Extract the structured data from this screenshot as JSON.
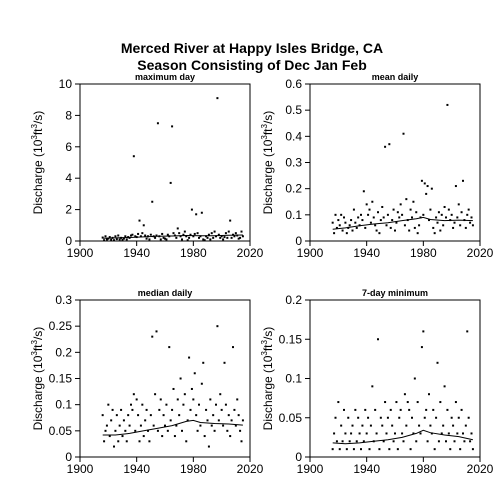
{
  "figure": {
    "title_line1": "Merced River at Happy Isles Bridge, CA",
    "title_line2": "Season Consisting of Dec Jan Feb"
  },
  "chart_data": [
    {
      "type": "scatter",
      "title": "maximum day",
      "ylabel": "Discharge (10^3 ft^3/s)",
      "ylabel_parts": [
        "Discharge (10",
        "3",
        "ft",
        "3",
        "/s)"
      ],
      "xlabel": "",
      "xlim": [
        1900,
        2020
      ],
      "ylim": [
        0,
        10
      ],
      "xticks": [
        1900,
        1940,
        1980,
        2020
      ],
      "yticks": [
        0,
        2,
        4,
        6,
        8,
        10
      ],
      "grid": false,
      "points": {
        "x": [
          1916,
          1917,
          1918,
          1919,
          1920,
          1921,
          1922,
          1923,
          1924,
          1925,
          1926,
          1927,
          1928,
          1929,
          1930,
          1931,
          1932,
          1933,
          1934,
          1935,
          1936,
          1937,
          1938,
          1939,
          1940,
          1941,
          1942,
          1943,
          1944,
          1945,
          1946,
          1947,
          1948,
          1949,
          1950,
          1951,
          1952,
          1953,
          1954,
          1955,
          1956,
          1957,
          1958,
          1959,
          1960,
          1961,
          1962,
          1963,
          1964,
          1965,
          1966,
          1967,
          1968,
          1969,
          1970,
          1971,
          1972,
          1973,
          1974,
          1975,
          1976,
          1977,
          1978,
          1979,
          1980,
          1981,
          1982,
          1983,
          1984,
          1985,
          1986,
          1987,
          1988,
          1989,
          1990,
          1991,
          1992,
          1993,
          1994,
          1995,
          1996,
          1997,
          1998,
          1999,
          2000,
          2001,
          2002,
          2003,
          2004,
          2005,
          2006,
          2007,
          2008,
          2009,
          2010,
          2011,
          2012,
          2013,
          2014,
          2015
        ],
        "y": [
          0.22,
          0.05,
          0.3,
          0.1,
          0.15,
          0.25,
          0.08,
          0.2,
          0.05,
          0.3,
          0.12,
          0.35,
          0.1,
          0.2,
          0.08,
          0.15,
          0.3,
          0.1,
          0.25,
          0.2,
          0.35,
          0.4,
          5.4,
          0.3,
          0.25,
          0.45,
          1.3,
          0.3,
          0.5,
          1.0,
          0.35,
          0.15,
          0.3,
          0.1,
          0.4,
          2.5,
          0.3,
          0.2,
          0.35,
          7.5,
          0.3,
          0.1,
          0.45,
          0.2,
          0.15,
          0.1,
          0.4,
          0.3,
          3.7,
          7.3,
          0.5,
          0.35,
          0.2,
          0.8,
          0.5,
          0.3,
          0.1,
          0.4,
          0.6,
          0.3,
          0.05,
          0.2,
          0.4,
          2.0,
          0.3,
          0.45,
          1.7,
          0.5,
          0.2,
          0.3,
          1.8,
          0.1,
          0.05,
          0.3,
          0.2,
          0.4,
          0.1,
          0.5,
          0.2,
          0.6,
          0.3,
          9.1,
          0.4,
          0.2,
          0.3,
          0.1,
          0.25,
          0.5,
          0.2,
          0.6,
          1.3,
          0.2,
          0.4,
          0.3,
          0.5,
          0.35,
          0.15,
          0.2,
          0.6,
          0.3
        ]
      },
      "trend": {
        "x": [
          1916,
          1925,
          1935,
          1945,
          1955,
          1965,
          1975,
          1985,
          1995,
          2005,
          2015
        ],
        "y": [
          0.18,
          0.2,
          0.22,
          0.26,
          0.3,
          0.32,
          0.35,
          0.33,
          0.34,
          0.36,
          0.38
        ]
      }
    },
    {
      "type": "scatter",
      "title": "mean daily",
      "ylabel": "Discharge (10^3 ft^3/s)",
      "ylabel_parts": [
        "Discharge (10",
        "3",
        "ft",
        "3",
        "/s)"
      ],
      "xlabel": "",
      "xlim": [
        1900,
        2020
      ],
      "ylim": [
        0,
        0.6
      ],
      "xticks": [
        1900,
        1940,
        1980,
        2020
      ],
      "yticks": [
        0,
        0.1,
        0.2,
        0.3,
        0.4,
        0.5,
        0.6
      ],
      "grid": false,
      "points": {
        "x": [
          1916,
          1917,
          1918,
          1919,
          1920,
          1921,
          1922,
          1923,
          1924,
          1925,
          1926,
          1927,
          1928,
          1929,
          1930,
          1931,
          1932,
          1933,
          1934,
          1935,
          1936,
          1937,
          1938,
          1939,
          1940,
          1941,
          1942,
          1943,
          1944,
          1945,
          1946,
          1947,
          1948,
          1949,
          1950,
          1951,
          1952,
          1953,
          1954,
          1955,
          1956,
          1957,
          1958,
          1959,
          1960,
          1961,
          1962,
          1963,
          1964,
          1965,
          1966,
          1967,
          1968,
          1969,
          1970,
          1971,
          1972,
          1973,
          1974,
          1975,
          1976,
          1977,
          1978,
          1979,
          1980,
          1981,
          1982,
          1983,
          1984,
          1985,
          1986,
          1987,
          1988,
          1989,
          1990,
          1991,
          1992,
          1993,
          1994,
          1995,
          1996,
          1997,
          1998,
          1999,
          2000,
          2001,
          2002,
          2003,
          2004,
          2005,
          2006,
          2007,
          2008,
          2009,
          2010,
          2011,
          2012,
          2013,
          2014,
          2015
        ],
        "y": [
          0.07,
          0.03,
          0.1,
          0.05,
          0.08,
          0.06,
          0.1,
          0.04,
          0.09,
          0.07,
          0.03,
          0.05,
          0.06,
          0.08,
          0.04,
          0.12,
          0.07,
          0.05,
          0.09,
          0.06,
          0.1,
          0.08,
          0.19,
          0.05,
          0.14,
          0.1,
          0.12,
          0.07,
          0.15,
          0.09,
          0.06,
          0.04,
          0.11,
          0.03,
          0.08,
          0.13,
          0.09,
          0.36,
          0.06,
          0.1,
          0.37,
          0.05,
          0.08,
          0.12,
          0.04,
          0.07,
          0.11,
          0.09,
          0.14,
          0.1,
          0.41,
          0.06,
          0.16,
          0.08,
          0.04,
          0.12,
          0.09,
          0.15,
          0.05,
          0.11,
          0.03,
          0.06,
          0.09,
          0.23,
          0.1,
          0.22,
          0.18,
          0.21,
          0.08,
          0.12,
          0.2,
          0.05,
          0.03,
          0.09,
          0.07,
          0.11,
          0.04,
          0.1,
          0.06,
          0.13,
          0.09,
          0.52,
          0.12,
          0.08,
          0.1,
          0.05,
          0.07,
          0.21,
          0.09,
          0.14,
          0.06,
          0.11,
          0.23,
          0.08,
          0.05,
          0.1,
          0.12,
          0.07,
          0.09,
          0.06
        ]
      },
      "trend": {
        "x": [
          1916,
          1925,
          1935,
          1945,
          1955,
          1965,
          1975,
          1980,
          1985,
          1995,
          2005,
          2015
        ],
        "y": [
          0.045,
          0.05,
          0.058,
          0.065,
          0.07,
          0.078,
          0.085,
          0.09,
          0.082,
          0.078,
          0.08,
          0.078
        ]
      }
    },
    {
      "type": "scatter",
      "title": "median daily",
      "ylabel": "Discharge (10^3 ft^3/s)",
      "ylabel_parts": [
        "Discharge (10",
        "3",
        "ft",
        "3",
        "/s)"
      ],
      "xlabel": "",
      "xlim": [
        1900,
        2020
      ],
      "ylim": [
        0,
        0.3
      ],
      "xticks": [
        1900,
        1940,
        1980,
        2020
      ],
      "yticks": [
        0,
        0.05,
        0.1,
        0.15,
        0.2,
        0.25,
        0.3
      ],
      "grid": false,
      "points": {
        "x": [
          1916,
          1917,
          1918,
          1919,
          1920,
          1921,
          1922,
          1923,
          1924,
          1925,
          1926,
          1927,
          1928,
          1929,
          1930,
          1931,
          1932,
          1933,
          1934,
          1935,
          1936,
          1937,
          1938,
          1939,
          1940,
          1941,
          1942,
          1943,
          1944,
          1945,
          1946,
          1947,
          1948,
          1949,
          1950,
          1951,
          1952,
          1953,
          1954,
          1955,
          1956,
          1957,
          1958,
          1959,
          1960,
          1961,
          1962,
          1963,
          1964,
          1965,
          1966,
          1967,
          1968,
          1969,
          1970,
          1971,
          1972,
          1973,
          1974,
          1975,
          1976,
          1977,
          1978,
          1979,
          1980,
          1981,
          1982,
          1983,
          1984,
          1985,
          1986,
          1987,
          1988,
          1989,
          1990,
          1991,
          1992,
          1993,
          1994,
          1995,
          1996,
          1997,
          1998,
          1999,
          2000,
          2001,
          2002,
          2003,
          2004,
          2005,
          2006,
          2007,
          2008,
          2009,
          2010,
          2011,
          2012,
          2013,
          2014,
          2015
        ],
        "y": [
          0.08,
          0.03,
          0.05,
          0.06,
          0.1,
          0.04,
          0.07,
          0.09,
          0.02,
          0.05,
          0.08,
          0.03,
          0.06,
          0.09,
          0.04,
          0.07,
          0.05,
          0.03,
          0.08,
          0.06,
          0.1,
          0.09,
          0.12,
          0.05,
          0.11,
          0.08,
          0.03,
          0.06,
          0.1,
          0.04,
          0.07,
          0.09,
          0.05,
          0.03,
          0.08,
          0.23,
          0.06,
          0.12,
          0.24,
          0.05,
          0.09,
          0.11,
          0.04,
          0.08,
          0.06,
          0.1,
          0.05,
          0.21,
          0.07,
          0.09,
          0.13,
          0.04,
          0.06,
          0.11,
          0.08,
          0.15,
          0.05,
          0.1,
          0.12,
          0.03,
          0.07,
          0.19,
          0.09,
          0.13,
          0.11,
          0.16,
          0.08,
          0.05,
          0.1,
          0.06,
          0.14,
          0.18,
          0.04,
          0.09,
          0.07,
          0.02,
          0.11,
          0.06,
          0.08,
          0.05,
          0.1,
          0.25,
          0.07,
          0.12,
          0.09,
          0.06,
          0.18,
          0.1,
          0.05,
          0.08,
          0.04,
          0.07,
          0.21,
          0.09,
          0.06,
          0.11,
          0.08,
          0.05,
          0.03,
          0.07
        ]
      },
      "trend": {
        "x": [
          1916,
          1925,
          1935,
          1945,
          1955,
          1965,
          1975,
          1980,
          1985,
          1995,
          2005,
          2015
        ],
        "y": [
          0.042,
          0.042,
          0.045,
          0.05,
          0.055,
          0.06,
          0.068,
          0.07,
          0.066,
          0.064,
          0.063,
          0.061
        ]
      }
    },
    {
      "type": "scatter",
      "title": "7-day minimum",
      "ylabel": "Discharge (10^3 ft^3/s)",
      "ylabel_parts": [
        "Discharge (10",
        "3",
        "ft",
        "3",
        "/s)"
      ],
      "xlabel": "",
      "xlim": [
        1900,
        2020
      ],
      "ylim": [
        0,
        0.2
      ],
      "xticks": [
        1900,
        1940,
        1980,
        2020
      ],
      "yticks": [
        0,
        0.05,
        0.1,
        0.15,
        0.2
      ],
      "grid": false,
      "points": {
        "x": [
          1916,
          1917,
          1918,
          1919,
          1920,
          1921,
          1922,
          1923,
          1924,
          1925,
          1926,
          1927,
          1928,
          1929,
          1930,
          1931,
          1932,
          1933,
          1934,
          1935,
          1936,
          1937,
          1938,
          1939,
          1940,
          1941,
          1942,
          1943,
          1944,
          1945,
          1946,
          1947,
          1948,
          1949,
          1950,
          1951,
          1952,
          1953,
          1954,
          1955,
          1956,
          1957,
          1958,
          1959,
          1960,
          1961,
          1962,
          1963,
          1964,
          1965,
          1966,
          1967,
          1968,
          1969,
          1970,
          1971,
          1972,
          1973,
          1974,
          1975,
          1976,
          1977,
          1978,
          1979,
          1980,
          1981,
          1982,
          1983,
          1984,
          1985,
          1986,
          1987,
          1988,
          1989,
          1990,
          1991,
          1992,
          1993,
          1994,
          1995,
          1996,
          1997,
          1998,
          1999,
          2000,
          2001,
          2002,
          2003,
          2004,
          2005,
          2006,
          2007,
          2008,
          2009,
          2010,
          2011,
          2012,
          2013,
          2014,
          2015
        ],
        "y": [
          0.01,
          0.03,
          0.05,
          0.02,
          0.07,
          0.01,
          0.04,
          0.02,
          0.06,
          0.03,
          0.01,
          0.05,
          0.02,
          0.03,
          0.04,
          0.01,
          0.06,
          0.02,
          0.05,
          0.03,
          0.01,
          0.04,
          0.02,
          0.06,
          0.03,
          0.05,
          0.01,
          0.04,
          0.09,
          0.02,
          0.06,
          0.03,
          0.15,
          0.01,
          0.05,
          0.04,
          0.02,
          0.07,
          0.03,
          0.05,
          0.01,
          0.06,
          0.04,
          0.02,
          0.03,
          0.07,
          0.01,
          0.05,
          0.06,
          0.03,
          0.02,
          0.08,
          0.04,
          0.07,
          0.06,
          0.01,
          0.05,
          0.03,
          0.1,
          0.02,
          0.07,
          0.04,
          0.03,
          0.14,
          0.16,
          0.05,
          0.06,
          0.02,
          0.08,
          0.04,
          0.03,
          0.06,
          0.01,
          0.05,
          0.12,
          0.02,
          0.07,
          0.03,
          0.04,
          0.09,
          0.02,
          0.06,
          0.03,
          0.01,
          0.05,
          0.04,
          0.02,
          0.07,
          0.03,
          0.05,
          0.01,
          0.06,
          0.03,
          0.02,
          0.04,
          0.16,
          0.05,
          0.02,
          0.03,
          0.01
        ]
      },
      "trend": {
        "x": [
          1916,
          1925,
          1935,
          1945,
          1955,
          1965,
          1975,
          1980,
          1985,
          1995,
          2005,
          2015
        ],
        "y": [
          0.018,
          0.017,
          0.018,
          0.02,
          0.022,
          0.025,
          0.03,
          0.034,
          0.031,
          0.028,
          0.026,
          0.022
        ]
      }
    }
  ]
}
